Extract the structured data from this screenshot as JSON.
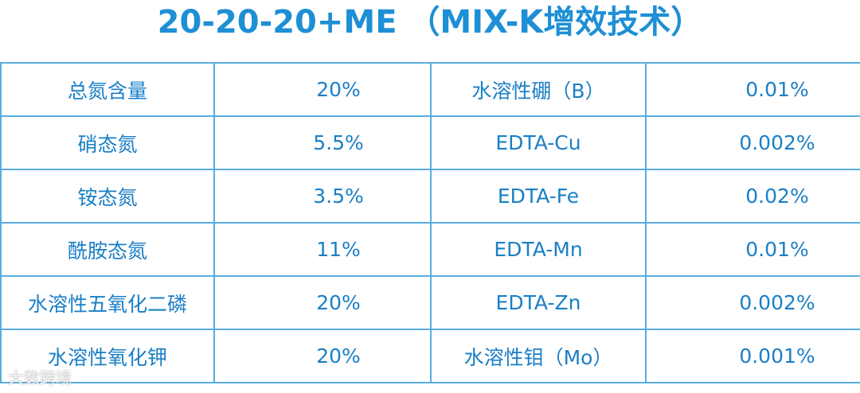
{
  "header": {
    "title": "20-20-20+ME （MIX-K增效技术）"
  },
  "table": {
    "rows": [
      [
        "总氮含量",
        "20%",
        "水溶性硼（B）",
        "0.01%"
      ],
      [
        "硝态氮",
        "5.5%",
        "EDTA-Cu",
        "0.002%"
      ],
      [
        "铵态氮",
        "3.5%",
        "EDTA-Fe",
        "0.02%"
      ],
      [
        "酰胺态氮",
        "11%",
        "EDTA-Mn",
        "0.01%"
      ],
      [
        "水溶性五氧化二磷",
        "20%",
        "EDTA-Zn",
        "0.002%"
      ],
      [
        "水溶性氧化钾",
        "20%",
        "水溶性钼（Mo）",
        "0.001%"
      ]
    ]
  },
  "watermark": "大数跨境"
}
